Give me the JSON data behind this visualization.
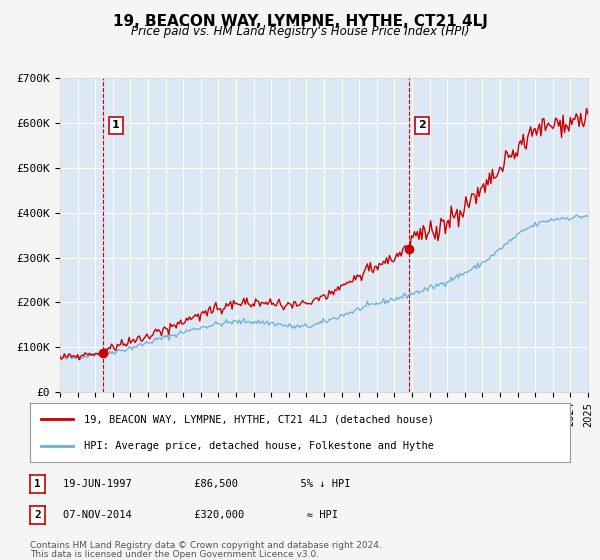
{
  "title": "19, BEACON WAY, LYMPNE, HYTHE, CT21 4LJ",
  "subtitle": "Price paid vs. HM Land Registry's House Price Index (HPI)",
  "legend_line1": "19, BEACON WAY, LYMPNE, HYTHE, CT21 4LJ (detached house)",
  "legend_line2": "HPI: Average price, detached house, Folkestone and Hythe",
  "annotation1_label": "1",
  "annotation1_date": "19-JUN-1997",
  "annotation1_price": "£86,500",
  "annotation1_hpi": "5% ↓ HPI",
  "annotation2_label": "2",
  "annotation2_date": "07-NOV-2014",
  "annotation2_price": "£320,000",
  "annotation2_hpi": "≈ HPI",
  "footnote1": "Contains HM Land Registry data © Crown copyright and database right 2024.",
  "footnote2": "This data is licensed under the Open Government Licence v3.0.",
  "hpi_color": "#6baed6",
  "price_color": "#cc0000",
  "bg_color": "#dce9f5",
  "plot_bg_color": "#dce9f5",
  "grid_color": "#ffffff",
  "vline_color": "#cc0000",
  "marker_color": "#cc0000",
  "ylim": [
    0,
    700000
  ],
  "yticks": [
    0,
    100000,
    200000,
    300000,
    400000,
    500000,
    600000,
    700000
  ],
  "ytick_labels": [
    "£0",
    "£100K",
    "£200K",
    "£300K",
    "£400K",
    "£500K",
    "£600K",
    "£700K"
  ],
  "sale1_x": 1997.46,
  "sale1_y": 86500,
  "sale2_x": 2014.85,
  "sale2_y": 320000,
  "xmin": 1995,
  "xmax": 2025
}
